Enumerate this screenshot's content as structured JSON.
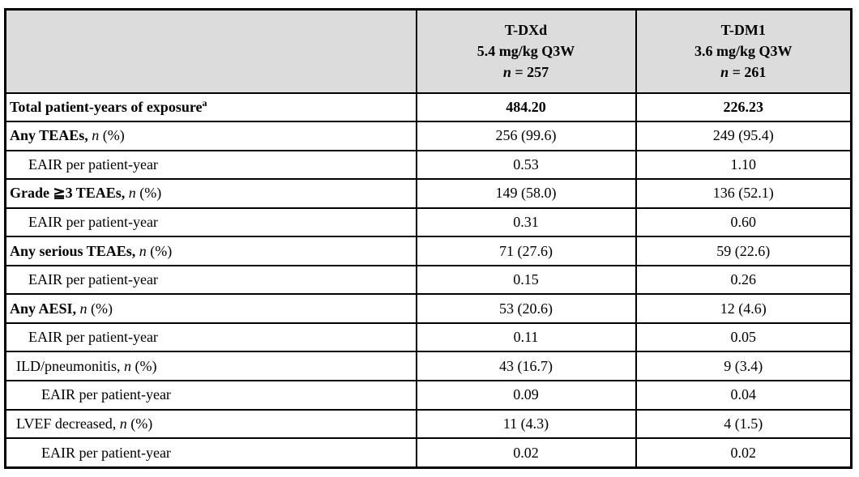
{
  "table": {
    "header": {
      "row_label_col": "",
      "columns": [
        {
          "drug": "T-DXd",
          "dose": "5.4 mg/kg Q3W",
          "n_symbol": "n",
          "n_value": "= 257"
        },
        {
          "drug": "T-DM1",
          "dose": "3.6 mg/kg Q3W",
          "n_symbol": "n",
          "n_value": "= 261"
        }
      ]
    },
    "n_pct_suffix": {
      "n_symbol": "n",
      "pct": "(%)"
    },
    "rows": [
      {
        "label": "Total patient-years of exposure",
        "sup": "a",
        "bold": true,
        "indent": 0,
        "n_pct": false,
        "values": [
          "484.20",
          "226.23"
        ],
        "values_bold": true
      },
      {
        "label": "Any TEAEs,",
        "bold": true,
        "indent": 0,
        "n_pct": true,
        "values": [
          "256 (99.6)",
          "249 (95.4)"
        ]
      },
      {
        "label": "EAIR per patient-year",
        "bold": false,
        "indent": 2,
        "n_pct": false,
        "values": [
          "0.53",
          "1.10"
        ]
      },
      {
        "label": "Grade ≧3 TEAEs,",
        "bold": true,
        "indent": 0,
        "n_pct": true,
        "values": [
          "149 (58.0)",
          "136 (52.1)"
        ]
      },
      {
        "label": "EAIR per patient-year",
        "bold": false,
        "indent": 2,
        "n_pct": false,
        "values": [
          "0.31",
          "0.60"
        ]
      },
      {
        "label": "Any serious TEAEs,",
        "bold": true,
        "indent": 0,
        "n_pct": true,
        "values": [
          "71 (27.6)",
          "59 (22.6)"
        ]
      },
      {
        "label": "EAIR per patient-year",
        "bold": false,
        "indent": 2,
        "n_pct": false,
        "values": [
          "0.15",
          "0.26"
        ]
      },
      {
        "label": "Any AESI,",
        "bold": true,
        "indent": 0,
        "n_pct": true,
        "values": [
          "53 (20.6)",
          "12 (4.6)"
        ]
      },
      {
        "label": "EAIR per patient-year",
        "bold": false,
        "indent": 2,
        "n_pct": false,
        "values": [
          "0.11",
          "0.05"
        ]
      },
      {
        "label": "ILD/pneumonitis,",
        "bold": false,
        "indent": 1,
        "n_pct": true,
        "values": [
          "43 (16.7)",
          "9 (3.4)"
        ]
      },
      {
        "label": "EAIR per patient-year",
        "bold": false,
        "indent": 3,
        "n_pct": false,
        "values": [
          "0.09",
          "0.04"
        ]
      },
      {
        "label": "LVEF decreased,",
        "bold": false,
        "indent": 1,
        "n_pct": true,
        "values": [
          "11 (4.3)",
          "4 (1.5)"
        ]
      },
      {
        "label": "EAIR per patient-year",
        "bold": false,
        "indent": 3,
        "n_pct": false,
        "values": [
          "0.02",
          "0.02"
        ]
      }
    ]
  },
  "colors": {
    "header_bg": "#dcdcdc",
    "border": "#000000",
    "text": "#000000",
    "page_bg": "#ffffff"
  }
}
